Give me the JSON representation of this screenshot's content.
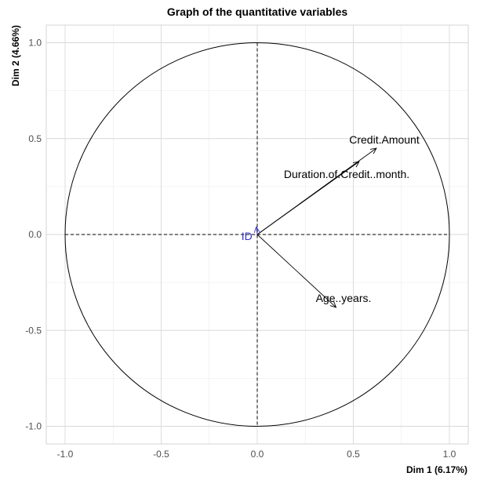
{
  "chart_data": {
    "type": "scatter",
    "title": "Graph of the quantitative variables",
    "xlabel": "Dim 1 (6.17%)",
    "ylabel": "Dim 2 (4.66%)",
    "xlim": [
      -1.1,
      1.1
    ],
    "ylim": [
      -1.1,
      1.1
    ],
    "x_ticks": [
      {
        "value": -1.0,
        "label": "-1.0"
      },
      {
        "value": -0.5,
        "label": "-0.5"
      },
      {
        "value": 0.0,
        "label": "0.0"
      },
      {
        "value": 0.5,
        "label": "0.5"
      },
      {
        "value": 1.0,
        "label": "1.0"
      }
    ],
    "y_ticks": [
      {
        "value": -1.0,
        "label": "-1.0"
      },
      {
        "value": -0.5,
        "label": "-0.5"
      },
      {
        "value": 0.0,
        "label": "0.0"
      },
      {
        "value": 0.5,
        "label": "0.5"
      },
      {
        "value": 1.0,
        "label": "1.0"
      }
    ],
    "grid": true,
    "correlation_circle": true,
    "variables": [
      {
        "name": "Credit.Amount",
        "x": 0.62,
        "y": 0.45,
        "color": "#000000"
      },
      {
        "name": "Duration.of.Credit..month.",
        "x": 0.53,
        "y": 0.38,
        "color": "#000000"
      },
      {
        "name": "Age..years.",
        "x": 0.41,
        "y": -0.38,
        "color": "#000000"
      },
      {
        "name": "ID",
        "x": -0.005,
        "y": 0.04,
        "color": "#3333cc"
      }
    ]
  }
}
